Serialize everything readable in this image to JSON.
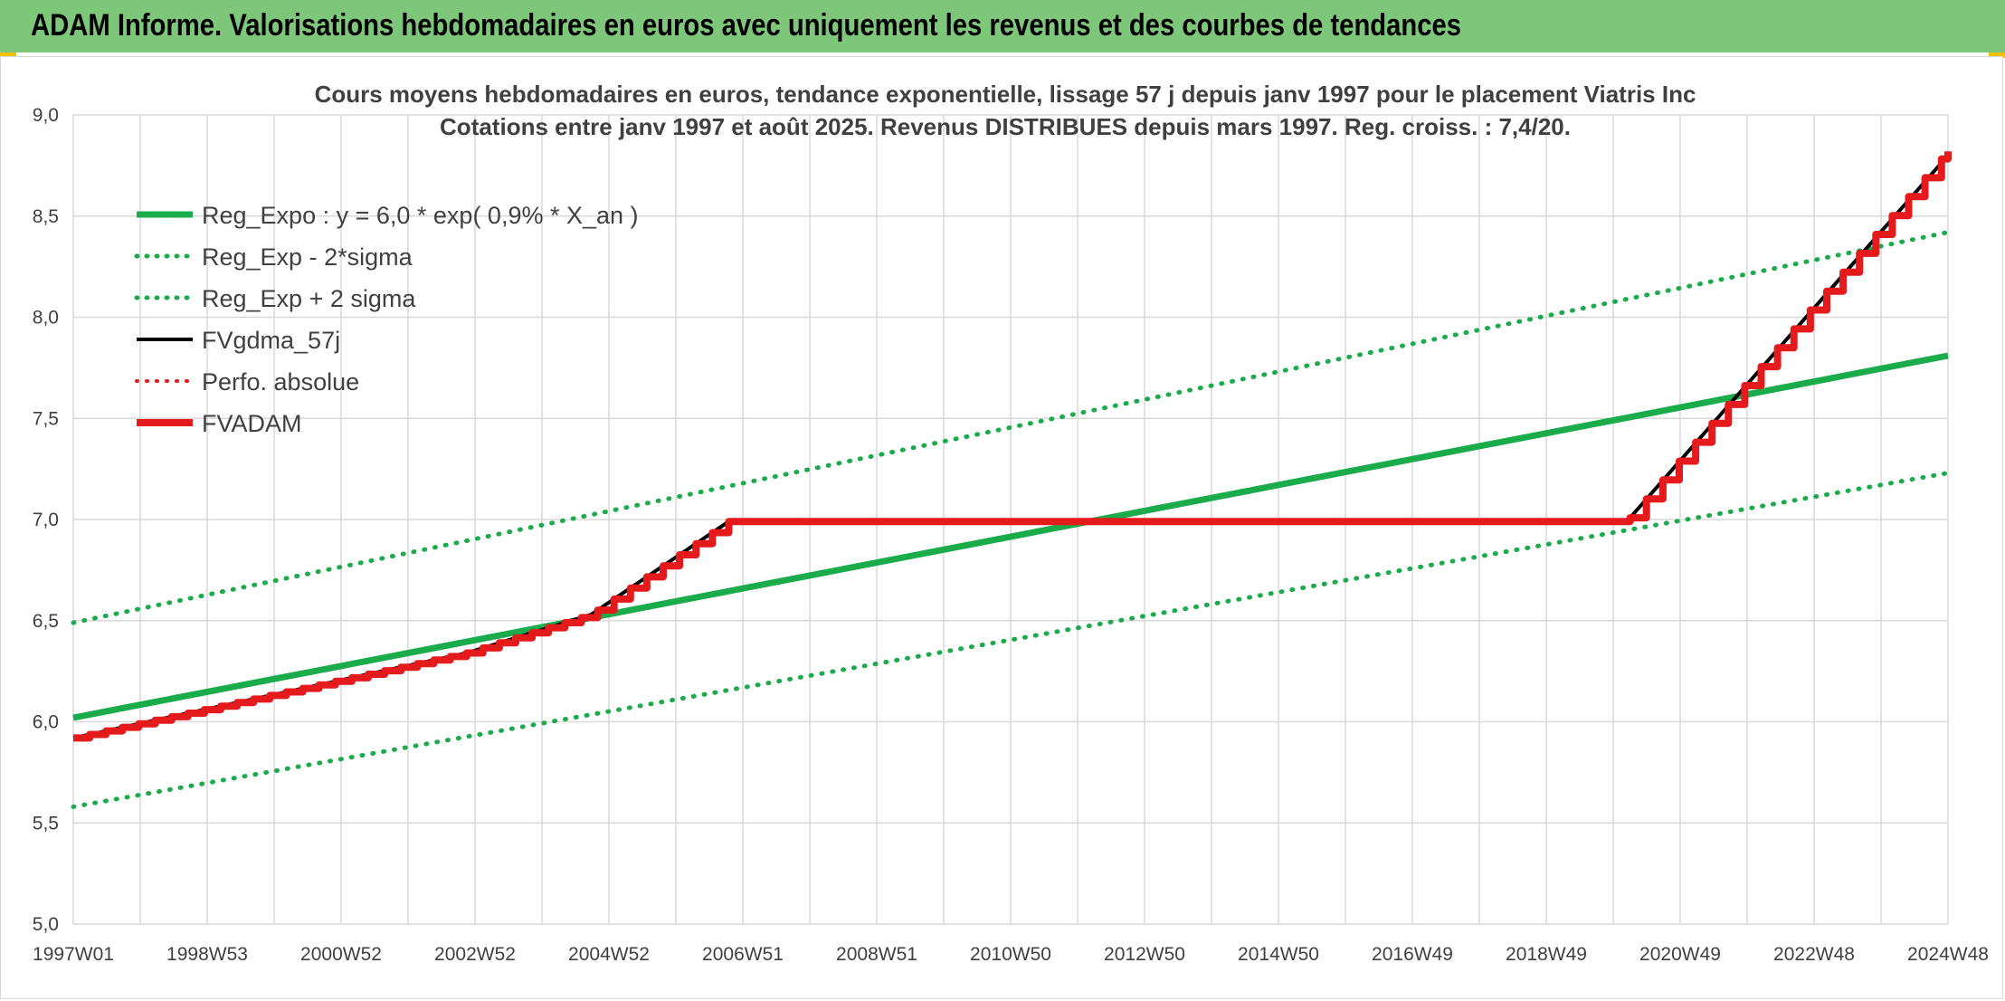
{
  "header": {
    "title": "ADAM Informe. Valorisations hebdomadaires en euros avec uniquement les revenus et des courbes de tendances"
  },
  "chart_data": {
    "type": "line",
    "title_lines": [
      "Cours moyens hebdomadaires en euros, tendance exponentielle, lissage 57 j depuis janv 1997 pour le placement Viatris Inc",
      "Cotations entre janv 1997 et août 2025. Revenus DISTRIBUES depuis mars 1997. Reg. croiss. : 7,4/20."
    ],
    "x_tick_labels": [
      "1997W01",
      "1998W53",
      "2000W52",
      "2002W52",
      "2004W52",
      "2006W51",
      "2008W51",
      "2010W50",
      "2012W50",
      "2014W50",
      "2016W49",
      "2018W49",
      "2020W49",
      "2022W48",
      "2024W48"
    ],
    "x_range": [
      1997.0,
      2025.6
    ],
    "ylim": [
      5.0,
      9.0
    ],
    "y_ticks": [
      5.0,
      5.5,
      6.0,
      6.5,
      7.0,
      7.5,
      8.0,
      8.5,
      9.0
    ],
    "y_tick_labels": [
      "5,0",
      "5,5",
      "6,0",
      "6,5",
      "7,0",
      "7,5",
      "8,0",
      "8,5",
      "9,0"
    ],
    "grid": true,
    "legend_position": "top-left",
    "series": [
      {
        "name": "Reg_Expo : y = 6,0 * exp( 0,9% *  X_an )",
        "color": "#1aab4b",
        "style": "solid",
        "width": 7,
        "x": [
          1997.0,
          2025.6
        ],
        "y": [
          6.02,
          7.81
        ]
      },
      {
        "name": "Reg_Exp - 2*sigma",
        "color": "#1aab4b",
        "style": "dotted",
        "width": 5,
        "x": [
          1997.0,
          2025.6
        ],
        "y": [
          5.58,
          7.23
        ]
      },
      {
        "name": "Reg_Exp + 2 sigma",
        "color": "#1aab4b",
        "style": "dotted",
        "width": 5,
        "x": [
          1997.0,
          2025.6
        ],
        "y": [
          6.49,
          8.42
        ]
      },
      {
        "name": "FVgdma_57j",
        "color": "#000000",
        "style": "solid",
        "width": 4,
        "x": [
          1997.0,
          2003.0,
          2004.9,
          2007.0,
          2020.7,
          2025.6
        ],
        "y": [
          5.92,
          6.34,
          6.53,
          6.99,
          6.99,
          8.8
        ]
      },
      {
        "name": "Perfo. absolue",
        "color": "#e41a1c",
        "style": "dotted",
        "width": 4,
        "x": [],
        "y": []
      },
      {
        "name": "FVADAM",
        "color": "#e41a1c",
        "style": "solid",
        "width": 8,
        "x": [
          1997.0,
          2003.0,
          2004.9,
          2007.0,
          2020.7,
          2025.6
        ],
        "y": [
          5.92,
          6.34,
          6.53,
          6.99,
          6.99,
          8.82
        ]
      }
    ]
  }
}
